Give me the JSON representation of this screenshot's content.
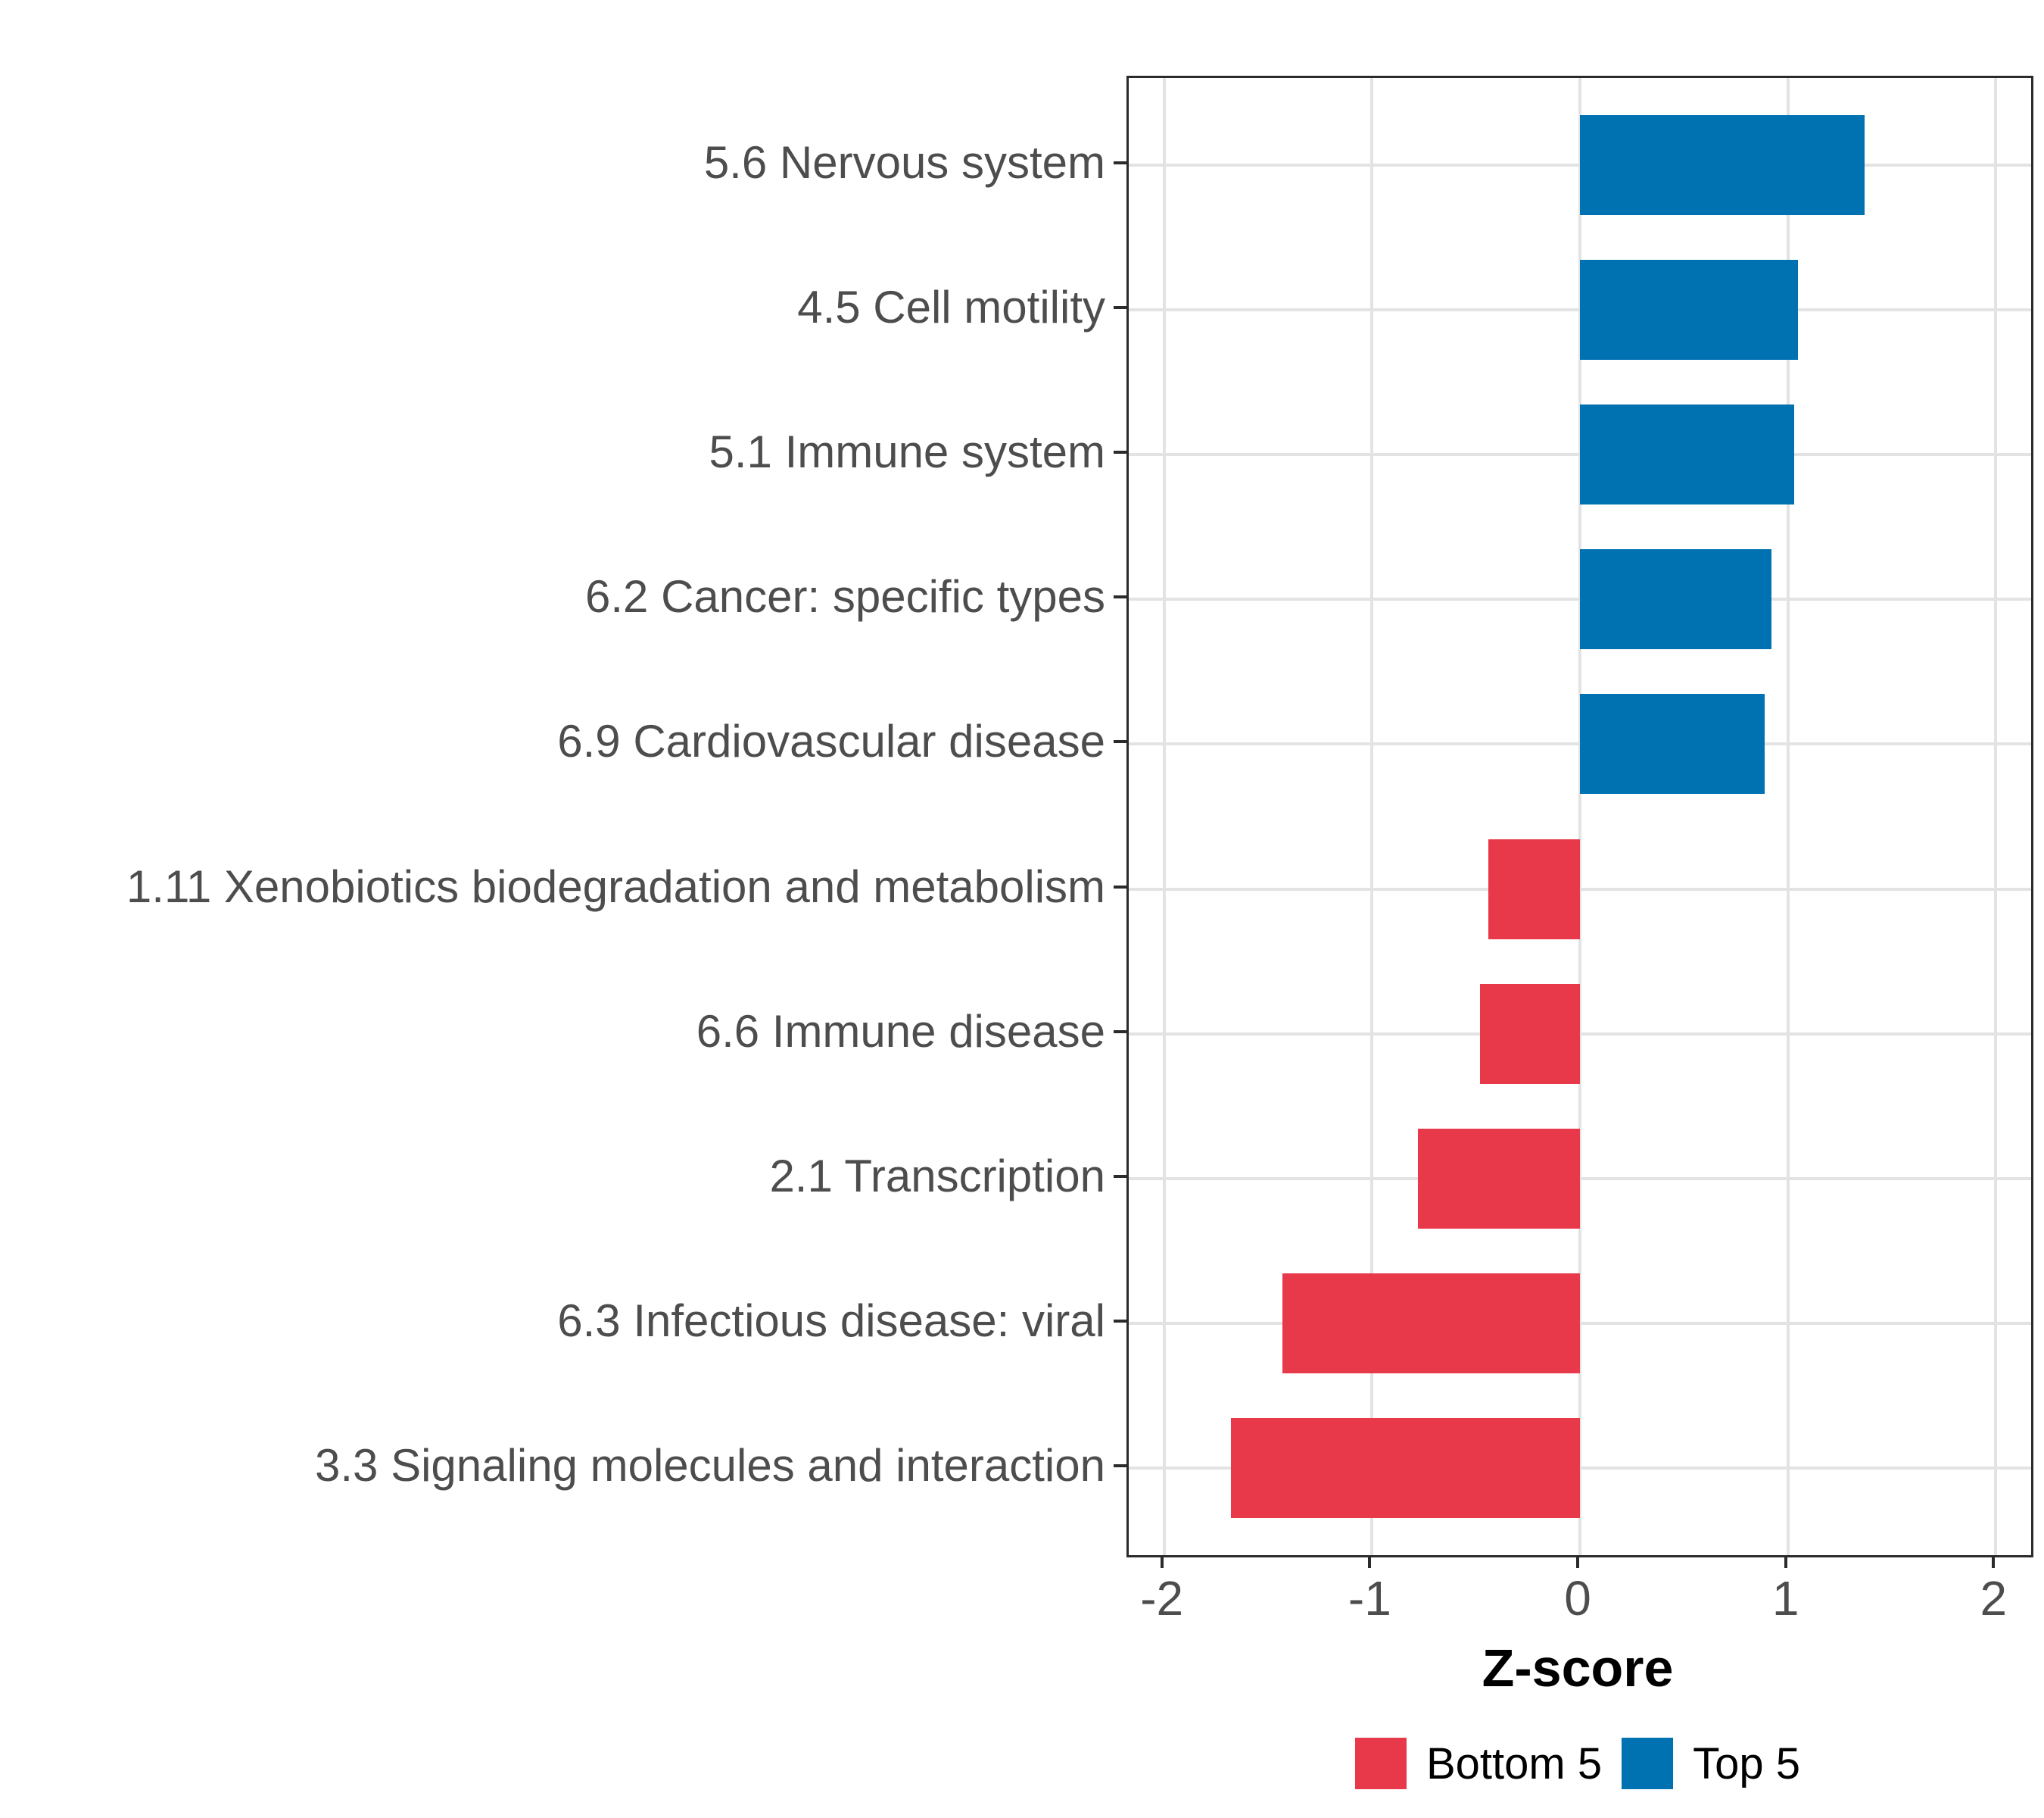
{
  "chart_data": {
    "type": "bar",
    "orientation": "horizontal",
    "title": "",
    "xlabel": "Z-score",
    "categories": [
      "5.6 Nervous system",
      "4.5 Cell motility",
      "5.1 Immune system",
      "6.2 Cancer: specific types",
      "6.9 Cardiovascular disease",
      "1.11 Xenobiotics biodegradation and metabolism",
      "6.6 Immune disease",
      "2.1 Transcription",
      "6.3 Infectious disease: viral",
      "3.3 Signaling molecules and interaction"
    ],
    "values": [
      1.37,
      1.05,
      1.03,
      0.92,
      0.89,
      -0.44,
      -0.48,
      -0.78,
      -1.43,
      -1.68
    ],
    "groups": [
      "Top 5",
      "Top 5",
      "Top 5",
      "Top 5",
      "Top 5",
      "Bottom 5",
      "Bottom 5",
      "Bottom 5",
      "Bottom 5",
      "Bottom 5"
    ],
    "x_ticks": [
      -2,
      -1,
      0,
      1,
      2
    ],
    "xlim": [
      -2.17,
      2.17
    ],
    "grid": true,
    "legend_position": "bottom",
    "colors": {
      "Top 5": "#0072b2",
      "Bottom 5": "#e8394a"
    },
    "legend": {
      "items": [
        {
          "label": "Bottom 5",
          "color": "#e8394a"
        },
        {
          "label": "Top 5",
          "color": "#0072b2"
        }
      ]
    },
    "style": {
      "axis_text_color": "#4d4d4d",
      "gridline_color": "#e3e3e3",
      "panel_border_color": "#2b2b2b",
      "background": "#ffffff"
    }
  }
}
